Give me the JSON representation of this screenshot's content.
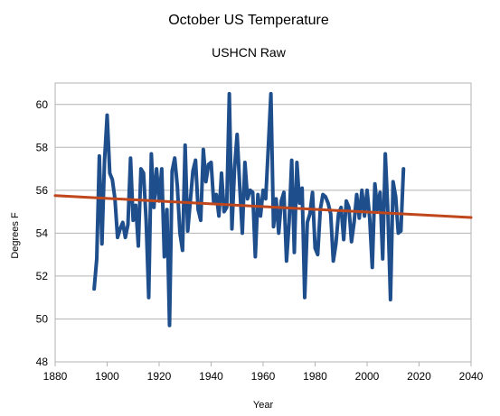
{
  "chart_data": {
    "type": "line",
    "title": "October US Temperature",
    "subtitle": "USHCN Raw",
    "xlabel": "Year",
    "ylabel": "Degrees F",
    "xlim": [
      1880,
      2040
    ],
    "ylim": [
      48,
      61
    ],
    "x_ticks": [
      1880,
      1900,
      1920,
      1940,
      1960,
      1980,
      2000,
      2020,
      2040
    ],
    "y_ticks": [
      48,
      50,
      52,
      54,
      56,
      58,
      60
    ],
    "grid": "horizontal",
    "legend": "none",
    "series": [
      {
        "color": "#1f4e8c",
        "x": [
          1895,
          1896,
          1897,
          1898,
          1899,
          1900,
          1901,
          1902,
          1903,
          1904,
          1905,
          1906,
          1907,
          1908,
          1909,
          1910,
          1911,
          1912,
          1913,
          1914,
          1915,
          1916,
          1917,
          1918,
          1919,
          1920,
          1921,
          1922,
          1923,
          1924,
          1925,
          1926,
          1927,
          1928,
          1929,
          1930,
          1931,
          1932,
          1933,
          1934,
          1935,
          1936,
          1937,
          1938,
          1939,
          1940,
          1941,
          1942,
          1943,
          1944,
          1945,
          1946,
          1947,
          1948,
          1949,
          1950,
          1951,
          1952,
          1953,
          1954,
          1955,
          1956,
          1957,
          1958,
          1959,
          1960,
          1961,
          1962,
          1963,
          1964,
          1965,
          1966,
          1967,
          1968,
          1969,
          1970,
          1971,
          1972,
          1973,
          1974,
          1975,
          1976,
          1977,
          1978,
          1979,
          1980,
          1981,
          1982,
          1983,
          1984,
          1985,
          1986,
          1987,
          1988,
          1989,
          1990,
          1991,
          1992,
          1993,
          1994,
          1995,
          1996,
          1997,
          1998,
          1999,
          2000,
          2001,
          2002,
          2003,
          2004,
          2005,
          2006,
          2007,
          2008,
          2009,
          2010,
          2011,
          2012,
          2013,
          2014
        ],
        "values": [
          51.4,
          52.8,
          57.6,
          53.5,
          57.4,
          59.5,
          56.8,
          56.5,
          55.6,
          53.8,
          54.2,
          54.5,
          53.8,
          54.4,
          57.5,
          54.6,
          55.3,
          53.4,
          57.0,
          56.8,
          54.6,
          51.0,
          57.7,
          55.2,
          57.0,
          55.5,
          57.0,
          52.9,
          55.1,
          49.7,
          56.9,
          57.5,
          56.2,
          54.0,
          53.2,
          58.1,
          54.1,
          55.5,
          56.9,
          57.4,
          55.1,
          54.6,
          57.9,
          56.4,
          57.2,
          57.3,
          55.4,
          55.8,
          54.8,
          56.8,
          55.0,
          55.2,
          60.5,
          54.2,
          57.0,
          58.6,
          56.2,
          54.0,
          57.3,
          55.6,
          56.0,
          55.9,
          52.9,
          55.8,
          54.8,
          56.0,
          55.6,
          58.0,
          60.5,
          54.3,
          55.6,
          54.0,
          55.5,
          55.9,
          52.7,
          54.5,
          57.4,
          53.1,
          57.3,
          55.4,
          56.1,
          51.0,
          54.5,
          54.9,
          55.9,
          53.3,
          53.0,
          55.1,
          55.8,
          55.7,
          55.4,
          54.9,
          52.7,
          53.5,
          54.9,
          55.2,
          53.7,
          55.5,
          55.2,
          53.6,
          54.5,
          55.8,
          54.7,
          56.0,
          54.8,
          56.0,
          54.7,
          52.4,
          56.3,
          55.1,
          55.9,
          52.8,
          57.7,
          55.0,
          50.9,
          56.4,
          55.7,
          54.0,
          54.1,
          57.0
        ]
      },
      {
        "color": "#c0461c",
        "x": [
          1880,
          2040
        ],
        "values": [
          55.75,
          54.73
        ]
      }
    ]
  }
}
